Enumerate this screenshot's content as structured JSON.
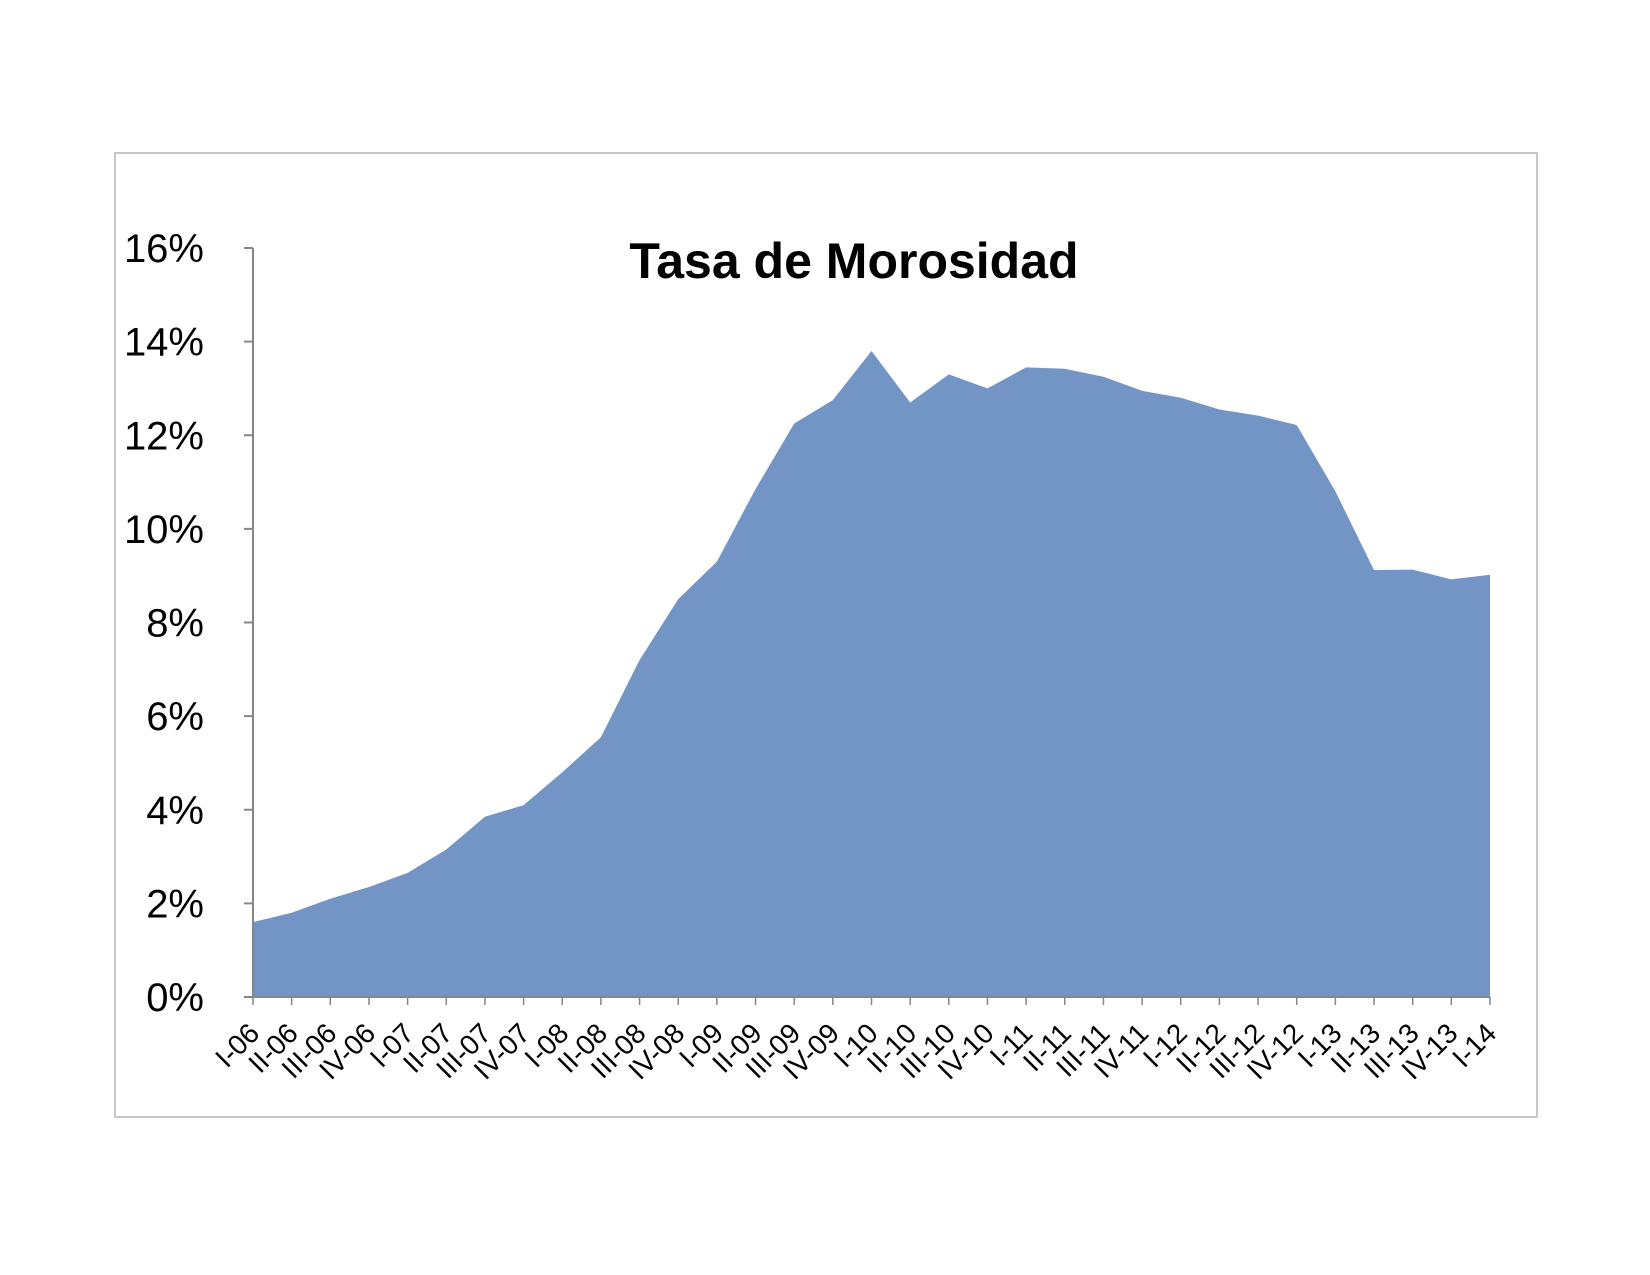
{
  "colors": {
    "area_fill": "#7395c6",
    "axis": "#868686",
    "frame": "#c8c8c8"
  },
  "chart_data": {
    "type": "area",
    "title": "Tasa de Morosidad",
    "xlabel": "",
    "ylabel": "",
    "ylim": [
      0,
      16
    ],
    "y_ticks": [
      0,
      2,
      4,
      6,
      8,
      10,
      12,
      14,
      16
    ],
    "y_tick_labels": [
      "0%",
      "2%",
      "4%",
      "6%",
      "8%",
      "10%",
      "12%",
      "14%",
      "16%"
    ],
    "grid": false,
    "legend": "none",
    "categories": [
      "I-06",
      "II-06",
      "III-06",
      "IV-06",
      "I-07",
      "II-07",
      "III-07",
      "IV-07",
      "I-08",
      "II-08",
      "III-08",
      "IV-08",
      "I-09",
      "II-09",
      "III-09",
      "IV-09",
      "I-10",
      "II-10",
      "III-10",
      "IV-10",
      "I-11",
      "II-11",
      "III-11",
      "IV-11",
      "I-12",
      "II-12",
      "III-12",
      "IV-12",
      "I-13",
      "II-13",
      "III-13",
      "IV-13",
      "I-14"
    ],
    "series": [
      {
        "values": [
          1.6,
          1.8,
          2.1,
          2.35,
          2.65,
          3.15,
          3.85,
          4.1,
          4.8,
          5.55,
          7.2,
          8.5,
          9.3,
          10.85,
          12.25,
          12.75,
          13.8,
          12.7,
          13.3,
          13.0,
          13.45,
          13.42,
          13.25,
          12.95,
          12.8,
          12.55,
          12.42,
          12.22,
          10.8,
          9.12,
          9.13,
          8.92,
          9.02
        ]
      }
    ]
  }
}
